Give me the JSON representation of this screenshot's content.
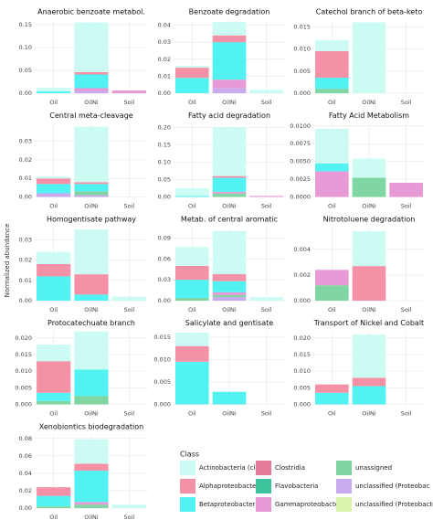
{
  "ylabel": "Normalized abundance",
  "legend": {
    "title": "Class",
    "items": [
      {
        "name": "Actinobacteria (class)",
        "color": "#ccfbf4"
      },
      {
        "name": "Alphaproteobacteria",
        "color": "#f491a6"
      },
      {
        "name": "Betaproteobacteria",
        "color": "#52f2f2"
      },
      {
        "name": "Clostridia",
        "color": "#e47a9a"
      },
      {
        "name": "Flavobacteria",
        "color": "#3cc59c"
      },
      {
        "name": "Gammaproteobacteria",
        "color": "#e79ad6"
      },
      {
        "name": "unassigned",
        "color": "#80d6a2"
      },
      {
        "name": "unclassified (Proteobac",
        "color": "#c9aaee"
      },
      {
        "name": "unclassified (Proteobacteria)",
        "color": "#dbf2ad"
      }
    ]
  },
  "chart_data": [
    {
      "type": "bar",
      "title": "Anaerobic benzoate metabol.",
      "categories": [
        "Oil",
        "OilNi",
        "Soil"
      ],
      "ylim": [
        0,
        0.16
      ],
      "yticks": [
        {
          "value": 0,
          "label": "0.00"
        },
        {
          "value": 0.05,
          "label": "0.05"
        },
        {
          "value": 0.1,
          "label": "0.10"
        },
        {
          "value": 0.15,
          "label": "0.15"
        }
      ],
      "series": [
        {
          "name": "Actinobacteria (class)",
          "values": [
            0.008,
            0.109,
            0
          ]
        },
        {
          "name": "Alphaproteobacteria",
          "values": [
            0,
            0.005,
            0
          ]
        },
        {
          "name": "Betaproteobacteria",
          "values": [
            0.004,
            0.03,
            0
          ]
        },
        {
          "name": "Gammaproteobacteria",
          "values": [
            0,
            0.006,
            0.006
          ]
        },
        {
          "name": "unclassified (Proteobac",
          "values": [
            0,
            0.005,
            0
          ]
        }
      ]
    },
    {
      "type": "bar",
      "title": "Benzoate degradation",
      "categories": [
        "Oil",
        "OilNi",
        "Soil"
      ],
      "ylim": [
        0,
        0.043
      ],
      "yticks": [
        {
          "value": 0,
          "label": "0.00"
        },
        {
          "value": 0.01,
          "label": "0.01"
        },
        {
          "value": 0.02,
          "label": "0.02"
        },
        {
          "value": 0.03,
          "label": "0.03"
        },
        {
          "value": 0.04,
          "label": "0.04"
        }
      ],
      "series": [
        {
          "name": "Actinobacteria (class)",
          "values": [
            0.001,
            0.008,
            0.002
          ]
        },
        {
          "name": "Alphaproteobacteria",
          "values": [
            0.006,
            0.004,
            0
          ]
        },
        {
          "name": "Betaproteobacteria",
          "values": [
            0.009,
            0.022,
            0
          ]
        },
        {
          "name": "Gammaproteobacteria",
          "values": [
            0,
            0.005,
            0
          ]
        },
        {
          "name": "unclassified (Proteobac",
          "values": [
            0,
            0.003,
            0
          ]
        }
      ]
    },
    {
      "type": "bar",
      "title": "Catechol branch of beta-keto",
      "categories": [
        "Oil",
        "OilNi",
        "Soil"
      ],
      "ylim": [
        0,
        0.0165
      ],
      "yticks": [
        {
          "value": 0,
          "label": "0.000"
        },
        {
          "value": 0.005,
          "label": "0.005"
        },
        {
          "value": 0.01,
          "label": "0.010"
        },
        {
          "value": 0.015,
          "label": "0.015"
        }
      ],
      "series": [
        {
          "name": "Actinobacteria (class)",
          "values": [
            0.0025,
            0.016,
            0
          ]
        },
        {
          "name": "Alphaproteobacteria",
          "values": [
            0.006,
            0,
            0
          ]
        },
        {
          "name": "Betaproteobacteria",
          "values": [
            0.0025,
            0,
            0
          ]
        },
        {
          "name": "unassigned",
          "values": [
            0.001,
            0,
            0
          ]
        }
      ]
    },
    {
      "type": "bar",
      "title": "Central meta-cleavage",
      "categories": [
        "Oil",
        "OilNi",
        "Soil"
      ],
      "ylim": [
        0,
        0.0395
      ],
      "yticks": [
        {
          "value": 0,
          "label": "0.00"
        },
        {
          "value": 0.01,
          "label": "0.01"
        },
        {
          "value": 0.02,
          "label": "0.02"
        },
        {
          "value": 0.03,
          "label": "0.03"
        }
      ],
      "series": [
        {
          "name": "Actinobacteria (class)",
          "values": [
            0.001,
            0.03,
            0
          ]
        },
        {
          "name": "Alphaproteobacteria",
          "values": [
            0.003,
            0.001,
            0
          ]
        },
        {
          "name": "Betaproteobacteria",
          "values": [
            0.005,
            0.004,
            0
          ]
        },
        {
          "name": "unassigned",
          "values": [
            0,
            0.002,
            0
          ]
        },
        {
          "name": "unclassified (Proteobac",
          "values": [
            0.002,
            0.001,
            0
          ]
        }
      ]
    },
    {
      "type": "bar",
      "title": "Fatty acid degradation",
      "categories": [
        "Oil",
        "OilNi",
        "Soil"
      ],
      "ylim": [
        0,
        0.21
      ],
      "yticks": [
        {
          "value": 0,
          "label": "0.00"
        },
        {
          "value": 0.05,
          "label": "0.05"
        },
        {
          "value": 0.1,
          "label": "0.10"
        },
        {
          "value": 0.15,
          "label": "0.15"
        },
        {
          "value": 0.2,
          "label": "0.20"
        }
      ],
      "series": [
        {
          "name": "Actinobacteria (class)",
          "values": [
            0.022,
            0.14,
            0
          ]
        },
        {
          "name": "Alphaproteobacteria",
          "values": [
            0,
            0.005,
            0
          ]
        },
        {
          "name": "Betaproteobacteria",
          "values": [
            0.003,
            0.04,
            0
          ]
        },
        {
          "name": "Gammaproteobacteria",
          "values": [
            0,
            0.005,
            0.003
          ]
        },
        {
          "name": "unassigned",
          "values": [
            0,
            0.01,
            0
          ]
        }
      ]
    },
    {
      "type": "bar",
      "title": "Fatty Acid Metabolism",
      "categories": [
        "Oil",
        "OilNi",
        "Soil"
      ],
      "ylim": [
        0,
        0.0103
      ],
      "yticks": [
        {
          "value": 0,
          "label": "0.0000"
        },
        {
          "value": 0.0025,
          "label": "0.0025"
        },
        {
          "value": 0.005,
          "label": "0.0050"
        },
        {
          "value": 0.0075,
          "label": "0.0075"
        },
        {
          "value": 0.01,
          "label": "0.0100"
        }
      ],
      "series": [
        {
          "name": "Actinobacteria (class)",
          "values": [
            0.0049,
            0.0027,
            0
          ]
        },
        {
          "name": "Betaproteobacteria",
          "values": [
            0.0011,
            0,
            0
          ]
        },
        {
          "name": "Gammaproteobacteria",
          "values": [
            0.0036,
            0,
            0.002
          ]
        },
        {
          "name": "unassigned",
          "values": [
            0,
            0.0027,
            0
          ]
        }
      ]
    },
    {
      "type": "bar",
      "title": "Homogentisate pathway",
      "categories": [
        "Oil",
        "OilNi",
        "Soil"
      ],
      "ylim": [
        0,
        0.036
      ],
      "yticks": [
        {
          "value": 0,
          "label": "0.00"
        },
        {
          "value": 0.01,
          "label": "0.01"
        },
        {
          "value": 0.02,
          "label": "0.02"
        },
        {
          "value": 0.03,
          "label": "0.03"
        }
      ],
      "series": [
        {
          "name": "Actinobacteria (class)",
          "values": [
            0.006,
            0.022,
            0.002
          ]
        },
        {
          "name": "Alphaproteobacteria",
          "values": [
            0.006,
            0.01,
            0
          ]
        },
        {
          "name": "Betaproteobacteria",
          "values": [
            0.012,
            0.003,
            0
          ]
        }
      ]
    },
    {
      "type": "bar",
      "title": "Metab. of central aromatic",
      "categories": [
        "Oil",
        "OilNi",
        "Soil"
      ],
      "ylim": [
        0,
        0.105
      ],
      "yticks": [
        {
          "value": 0,
          "label": "0.00"
        },
        {
          "value": 0.03,
          "label": "0.03"
        },
        {
          "value": 0.06,
          "label": "0.06"
        },
        {
          "value": 0.09,
          "label": "0.09"
        }
      ],
      "series": [
        {
          "name": "Actinobacteria (class)",
          "values": [
            0.027,
            0.062,
            0.005
          ]
        },
        {
          "name": "Alphaproteobacteria",
          "values": [
            0.02,
            0.01,
            0
          ]
        },
        {
          "name": "Betaproteobacteria",
          "values": [
            0.026,
            0.016,
            0
          ]
        },
        {
          "name": "Gammaproteobacteria",
          "values": [
            0,
            0.004,
            0
          ]
        },
        {
          "name": "unassigned",
          "values": [
            0.004,
            0.003,
            0
          ]
        },
        {
          "name": "unclassified (Proteobac",
          "values": [
            0,
            0.005,
            0
          ]
        }
      ]
    },
    {
      "type": "bar",
      "title": "Nitrotoluene degradation",
      "categories": [
        "Oil",
        "OilNi",
        "Soil"
      ],
      "ylim": [
        0,
        0.0057
      ],
      "yticks": [
        {
          "value": 0,
          "label": "0.000"
        },
        {
          "value": 0.002,
          "label": "0.002"
        },
        {
          "value": 0.004,
          "label": "0.004"
        }
      ],
      "series": [
        {
          "name": "Actinobacteria (class)",
          "values": [
            0,
            0.0027,
            0
          ]
        },
        {
          "name": "Alphaproteobacteria",
          "values": [
            0,
            0.0027,
            0
          ]
        },
        {
          "name": "Gammaproteobacteria",
          "values": [
            0.0012,
            0,
            0
          ]
        },
        {
          "name": "unassigned",
          "values": [
            0.0012,
            0,
            0
          ]
        }
      ]
    },
    {
      "type": "bar",
      "title": "Protocatechuate branch",
      "categories": [
        "Oil",
        "OilNi",
        "Soil"
      ],
      "ylim": [
        0,
        0.022
      ],
      "yticks": [
        {
          "value": 0,
          "label": "0.000"
        },
        {
          "value": 0.005,
          "label": "0.005"
        },
        {
          "value": 0.01,
          "label": "0.010"
        },
        {
          "value": 0.015,
          "label": "0.015"
        },
        {
          "value": 0.02,
          "label": "0.020"
        }
      ],
      "series": [
        {
          "name": "Actinobacteria (class)",
          "values": [
            0.005,
            0.0115,
            0
          ]
        },
        {
          "name": "Alphaproteobacteria",
          "values": [
            0.0095,
            0,
            0
          ]
        },
        {
          "name": "Betaproteobacteria",
          "values": [
            0.0025,
            0.008,
            0
          ]
        },
        {
          "name": "unassigned",
          "values": [
            0.001,
            0.0025,
            0
          ]
        }
      ]
    },
    {
      "type": "bar",
      "title": "Salicylate and gentisate",
      "categories": [
        "Oil",
        "OilNi",
        "Soil"
      ],
      "ylim": [
        0,
        0.0163
      ],
      "yticks": [
        {
          "value": 0,
          "label": "0.000"
        },
        {
          "value": 0.005,
          "label": "0.005"
        },
        {
          "value": 0.01,
          "label": "0.010"
        },
        {
          "value": 0.015,
          "label": "0.015"
        }
      ],
      "series": [
        {
          "name": "Actinobacteria (class)",
          "values": [
            0.003,
            0,
            0
          ]
        },
        {
          "name": "Alphaproteobacteria",
          "values": [
            0.0035,
            0,
            0
          ]
        },
        {
          "name": "Betaproteobacteria",
          "values": [
            0.0095,
            0.0028,
            0
          ]
        }
      ]
    },
    {
      "type": "bar",
      "title": "Transport of Nickel and Cobalt",
      "categories": [
        "Oil",
        "OilNi",
        "Soil"
      ],
      "ylim": [
        0,
        0.022
      ],
      "yticks": [
        {
          "value": 0,
          "label": "0.000"
        },
        {
          "value": 0.005,
          "label": "0.005"
        },
        {
          "value": 0.01,
          "label": "0.010"
        },
        {
          "value": 0.015,
          "label": "0.015"
        },
        {
          "value": 0.02,
          "label": "0.020"
        }
      ],
      "series": [
        {
          "name": "Actinobacteria (class)",
          "values": [
            0,
            0.013,
            0
          ]
        },
        {
          "name": "Alphaproteobacteria",
          "values": [
            0.0025,
            0.0025,
            0
          ]
        },
        {
          "name": "Betaproteobacteria",
          "values": [
            0.0035,
            0.0055,
            0
          ]
        }
      ]
    },
    {
      "type": "bar",
      "title": "Xenobiontics biodegradation",
      "categories": [
        "Oil",
        "OilNi",
        "Soil"
      ],
      "ylim": [
        0,
        0.084
      ],
      "yticks": [
        {
          "value": 0,
          "label": "0.00"
        },
        {
          "value": 0.02,
          "label": "0.02"
        },
        {
          "value": 0.04,
          "label": "0.04"
        },
        {
          "value": 0.06,
          "label": "0.06"
        },
        {
          "value": 0.08,
          "label": "0.08"
        }
      ],
      "series": [
        {
          "name": "Actinobacteria (class)",
          "values": [
            0,
            0.028,
            0.004
          ]
        },
        {
          "name": "Alphaproteobacteria",
          "values": [
            0.01,
            0.008,
            0
          ]
        },
        {
          "name": "Betaproteobacteria",
          "values": [
            0.012,
            0.036,
            0
          ]
        },
        {
          "name": "Gammaproteobacteria",
          "values": [
            0,
            0.003,
            0
          ]
        },
        {
          "name": "unassigned",
          "values": [
            0.002,
            0.004,
            0
          ]
        }
      ]
    }
  ]
}
